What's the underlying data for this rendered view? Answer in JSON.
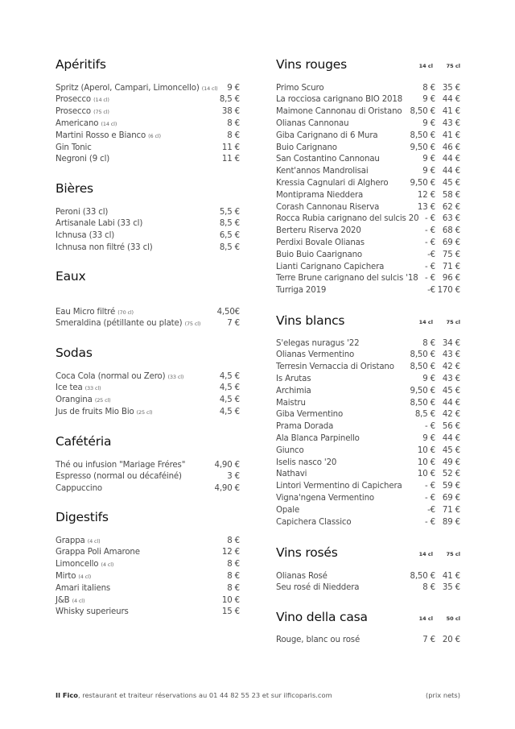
{
  "left": [
    {
      "title": "Apéritifs",
      "items": [
        {
          "name": "Spritz (Aperol, Campari, Limoncello)",
          "size": "(14 cl)",
          "price": "9 €"
        },
        {
          "name": "Prosecco",
          "size": "(14 cl)",
          "price": "8,5 €"
        },
        {
          "name": "Prosecco",
          "size": "(75 cl)",
          "price": "38 €"
        },
        {
          "name": "Americano",
          "size": "(14 cl)",
          "price": "8 €"
        },
        {
          "name": "Martini Rosso e Bianco",
          "size": "(6 cl)",
          "price": "8 €"
        },
        {
          "name": "Gin Tonic",
          "size": "",
          "price": "11 €"
        },
        {
          "name": "Negroni (9 cl)",
          "size": "",
          "price": "11 €"
        }
      ]
    },
    {
      "title": "Bières",
      "items": [
        {
          "name": "Peroni (33 cl)",
          "size": "",
          "price": "5,5 €"
        },
        {
          "name": "Artisanale Labi (33 cl)",
          "size": "",
          "price": "8,5 €"
        },
        {
          "name": "Ichnusa  (33 cl)",
          "size": "",
          "price": "6,5 €"
        },
        {
          "name": "Ichnusa  non filtré  (33 cl)",
          "size": "",
          "price": "8,5 €"
        }
      ]
    },
    {
      "title": "Eaux",
      "items": [
        {
          "name": "Eau Micro filtré",
          "size": "(70 cl)",
          "price": "4,50€"
        },
        {
          "name": "Smeraldina (pétillante ou plate)",
          "size": "(75 cl)",
          "price": "7 €"
        }
      ]
    },
    {
      "title": "Sodas",
      "items": [
        {
          "name": "Coca Cola (normal  ou Zero)",
          "size": "(33 cl)",
          "price": "4,5 €"
        },
        {
          "name": "Ice tea",
          "size": "(33 cl)",
          "price": "4,5 €"
        },
        {
          "name": "Orangina",
          "size": "(25 cl)",
          "price": "4,5 €"
        },
        {
          "name": "Jus de fruits Mio Bio",
          "size": "(25 cl)",
          "price": "4,5 €"
        }
      ]
    },
    {
      "title": "Cafétéria",
      "items": [
        {
          "name": "Thé ou infusion \"Mariage Fréres\"",
          "size": "",
          "price": "4,90 €"
        },
        {
          "name": "Espresso (normal ou décaféiné)",
          "size": "",
          "price": "3 €"
        },
        {
          "name": "Cappuccino",
          "size": "",
          "price": "4,90 €"
        }
      ]
    },
    {
      "title": "Digestifs",
      "items": [
        {
          "name": "Grappa",
          "size": "(4 cl)",
          "price": "8 €"
        },
        {
          "name": "Grappa Poli Amarone",
          "size": "",
          "price": "12 €"
        },
        {
          "name": "Limoncello",
          "size": "(4 cl)",
          "price": "8 €"
        },
        {
          "name": "Mirto",
          "size": "(4 cl)",
          "price": "8 €"
        },
        {
          "name": "Amari italiens",
          "size": "",
          "price": "8 €"
        },
        {
          "name": "J&B",
          "size": "(4 cl)",
          "price": "10 €"
        },
        {
          "name": "Whisky superieurs",
          "size": "",
          "price": "15 €"
        }
      ]
    }
  ],
  "right": [
    {
      "title": "Vins rouges",
      "col1": "14 cl",
      "col2": "75 cl",
      "items": [
        {
          "name": "Primo Scuro",
          "p1": "8 €",
          "p2": "35 €"
        },
        {
          "name": "La rocciosa carignano BIO 2018",
          "p1": "9 €",
          "p2": "44 €"
        },
        {
          "name": "Maimone Cannonau di Oristano",
          "p1": "8,50 €",
          "p2": "41 €"
        },
        {
          "name": "Olianas Cannonau",
          "p1": "9 €",
          "p2": "43 €"
        },
        {
          "name": "Giba Carignano di 6 Mura",
          "p1": "8,50 €",
          "p2": "41 €"
        },
        {
          "name": "Buio Carignano",
          "p1": "9,50 €",
          "p2": "46 €"
        },
        {
          "name": "San Costantino Cannonau",
          "p1": "9 €",
          "p2": "44 €"
        },
        {
          "name": "Kent'annos Mandrolisai",
          "p1": "9 €",
          "p2": "44 €"
        },
        {
          "name": "Kressia Cagnulari di Alghero",
          "p1": "9,50 €",
          "p2": "45 €"
        },
        {
          "name": "Montiprama Nieddera",
          "p1": "12 €",
          "p2": "58 €"
        },
        {
          "name": "Corash Cannonau Riserva",
          "p1": "13 €",
          "p2": "62 €"
        },
        {
          "name": "Rocca Rubia carignano del sulcis 20",
          "p1": "- €",
          "p2": "63 €"
        },
        {
          "name": "Berteru Riserva 2020",
          "p1": "- €",
          "p2": "68 €"
        },
        {
          "name": "Perdixi Bovale Olianas",
          "p1": "- €",
          "p2": "69 €"
        },
        {
          "name": "Buio Buio Caarignano",
          "p1": "-€",
          "p2": "75 €"
        },
        {
          "name": "Lianti Carignano Capichera",
          "p1": "- €",
          "p2": "71 €"
        },
        {
          "name": "Terre Brune carignano del sulcis '18",
          "p1": "- €",
          "p2": "96 €"
        },
        {
          "name": "Turriga 2019",
          "p1": "-€",
          "p2": "170 €"
        }
      ]
    },
    {
      "title": "Vins blancs",
      "col1": "14 cl",
      "col2": "75 cl",
      "items": [
        {
          "name": "S'elegas nuragus '22",
          "p1": "8 €",
          "p2": "34 €"
        },
        {
          "name": "Olianas Vermentino",
          "p1": "8,50 €",
          "p2": "43 €"
        },
        {
          "name": "Terresin Vernaccia di Oristano",
          "p1": "8,50 €",
          "p2": "42 €"
        },
        {
          "name": "Is Arutas",
          "p1": "9 €",
          "p2": "43 €"
        },
        {
          "name": "Archimia",
          "p1": "9,50 €",
          "p2": "45 €"
        },
        {
          "name": "Maistru",
          "p1": "8,50 €",
          "p2": "44 €"
        },
        {
          "name": "Giba Vermentino",
          "p1": "8,5 €",
          "p2": "42 €"
        },
        {
          "name": "Prama Dorada",
          "p1": "- €",
          "p2": "56 €"
        },
        {
          "name": "Ala Blanca Parpinello",
          "p1": "9 €",
          "p2": "44 €"
        },
        {
          "name": "Giunco",
          "p1": "10 €",
          "p2": "45 €"
        },
        {
          "name": "Iselis nasco '20",
          "p1": "10 €",
          "p2": "49 €"
        },
        {
          "name": "Nathavi",
          "p1": "10 €",
          "p2": "52 €"
        },
        {
          "name": "Lintori Vermentino di Capichera",
          "p1": "- €",
          "p2": "59 €"
        },
        {
          "name": "Vigna'ngena Vermentino",
          "p1": "- €",
          "p2": "69 €"
        },
        {
          "name": "Opale",
          "p1": "-€",
          "p2": "71 €"
        },
        {
          "name": "Capichera Classico",
          "p1": "- €",
          "p2": "89 €"
        }
      ]
    },
    {
      "title": "Vins rosés",
      "col1": "14 cl",
      "col2": "75 cl",
      "items": [
        {
          "name": "Olianas Rosé",
          "p1": "8,50 €",
          "p2": "41 €"
        },
        {
          "name": "Seu rosé di Nieddera",
          "p1": "8 €",
          "p2": "35 €"
        }
      ]
    },
    {
      "title": "Vino della casa",
      "col1": "14 cl",
      "col2": "50 cl",
      "items": [
        {
          "name": "Rouge, blanc ou rosé",
          "p1": "7 €",
          "p2": "20 €"
        }
      ]
    }
  ],
  "footer": {
    "brand": "Il Fico",
    "text": ", restaurant et traiteur réservations au 01 44 82 55 23 et sur ilficoparis.com",
    "note": "(prix nets)"
  }
}
